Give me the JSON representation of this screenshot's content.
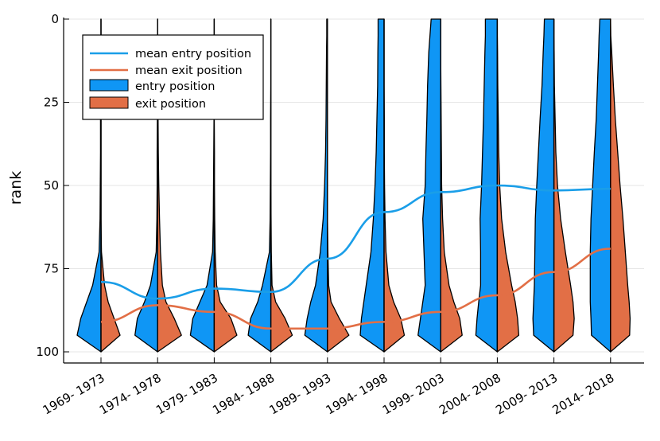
{
  "chart_data": {
    "type": "violin",
    "title": "",
    "xlabel": "",
    "ylabel": "rank",
    "ylim": [
      0,
      100
    ],
    "y_inverted": true,
    "yticks": [
      0,
      25,
      50,
      75,
      100
    ],
    "grid": true,
    "legend_position": "top-left",
    "categories": [
      "1969- 1973",
      "1974- 1978",
      "1979- 1983",
      "1984- 1988",
      "1989- 1993",
      "1994- 1998",
      "1999- 2003",
      "2004- 2008",
      "2009- 2013",
      "2014- 2018"
    ],
    "series": [
      {
        "name": "mean entry position",
        "kind": "line",
        "color": "#1a9ee8",
        "values": [
          79,
          84,
          81,
          82,
          72,
          58,
          52,
          50,
          51.5,
          51
        ]
      },
      {
        "name": "mean exit position",
        "kind": "line",
        "color": "#e26f46",
        "values": [
          91,
          86,
          88,
          93,
          93,
          91,
          88,
          83,
          76,
          69
        ]
      },
      {
        "name": "entry position",
        "kind": "violin-left",
        "color": "#0f96f5"
      },
      {
        "name": "exit position",
        "kind": "violin-right",
        "color": "#e26f46"
      }
    ],
    "violin_profiles": {
      "ranks": [
        0,
        5,
        10,
        20,
        30,
        40,
        50,
        60,
        70,
        80,
        85,
        90,
        95,
        100
      ],
      "entry": [
        [
          0,
          0,
          0,
          0.01,
          0.02,
          0.02,
          0.03,
          0.04,
          0.08,
          0.35,
          0.6,
          0.85,
          1,
          0
        ],
        [
          0,
          0,
          0,
          0.01,
          0.01,
          0.02,
          0.02,
          0.03,
          0.06,
          0.3,
          0.55,
          0.85,
          0.95,
          0
        ],
        [
          0,
          0,
          0,
          0.01,
          0.01,
          0.02,
          0.03,
          0.04,
          0.07,
          0.3,
          0.6,
          0.9,
          1,
          0
        ],
        [
          0,
          0,
          0,
          0,
          0.01,
          0.01,
          0.02,
          0.03,
          0.06,
          0.35,
          0.55,
          0.85,
          0.95,
          0
        ],
        [
          0.03,
          0.03,
          0.04,
          0.05,
          0.06,
          0.08,
          0.12,
          0.18,
          0.3,
          0.5,
          0.7,
          0.85,
          0.95,
          0
        ],
        [
          0.25,
          0.25,
          0.26,
          0.27,
          0.3,
          0.33,
          0.38,
          0.45,
          0.55,
          0.75,
          0.85,
          0.95,
          1,
          0
        ],
        [
          0.4,
          0.45,
          0.5,
          0.55,
          0.58,
          0.62,
          0.65,
          0.75,
          0.7,
          0.65,
          0.75,
          0.85,
          0.95,
          0
        ],
        [
          0.5,
          0.5,
          0.52,
          0.55,
          0.58,
          0.62,
          0.66,
          0.72,
          0.7,
          0.7,
          0.78,
          0.85,
          0.9,
          0
        ],
        [
          0.4,
          0.42,
          0.45,
          0.5,
          0.58,
          0.65,
          0.72,
          0.78,
          0.8,
          0.82,
          0.85,
          0.88,
          0.85,
          0
        ],
        [
          0.45,
          0.48,
          0.5,
          0.55,
          0.6,
          0.68,
          0.75,
          0.82,
          0.85,
          0.85,
          0.85,
          0.82,
          0.8,
          0
        ]
      ],
      "exit": [
        [
          0,
          0,
          0,
          0,
          0,
          0,
          0,
          0,
          0.02,
          0.15,
          0.3,
          0.55,
          0.8,
          0
        ],
        [
          0,
          0,
          0,
          0.01,
          0.02,
          0.03,
          0.05,
          0.08,
          0.12,
          0.2,
          0.35,
          0.7,
          1,
          0
        ],
        [
          0,
          0,
          0,
          0,
          0,
          0.01,
          0.01,
          0.02,
          0.04,
          0.1,
          0.25,
          0.7,
          0.95,
          0
        ],
        [
          0,
          0,
          0,
          0,
          0,
          0,
          0,
          0.01,
          0.02,
          0.05,
          0.2,
          0.6,
          0.9,
          0
        ],
        [
          0,
          0,
          0,
          0,
          0,
          0,
          0,
          0,
          0.02,
          0.05,
          0.15,
          0.5,
          0.9,
          0
        ],
        [
          0,
          0,
          0,
          0,
          0.01,
          0.01,
          0.02,
          0.04,
          0.08,
          0.2,
          0.4,
          0.7,
          0.85,
          0
        ],
        [
          0,
          0,
          0,
          0.01,
          0.02,
          0.03,
          0.04,
          0.08,
          0.15,
          0.35,
          0.55,
          0.8,
          0.9,
          0
        ],
        [
          0,
          0,
          0.01,
          0.02,
          0.04,
          0.06,
          0.1,
          0.18,
          0.35,
          0.6,
          0.75,
          0.85,
          0.9,
          0
        ],
        [
          0,
          0,
          0.01,
          0.02,
          0.05,
          0.08,
          0.15,
          0.28,
          0.48,
          0.7,
          0.8,
          0.85,
          0.8,
          0
        ],
        [
          0,
          0.01,
          0.05,
          0.12,
          0.2,
          0.3,
          0.4,
          0.52,
          0.62,
          0.72,
          0.78,
          0.82,
          0.8,
          0
        ]
      ]
    }
  }
}
